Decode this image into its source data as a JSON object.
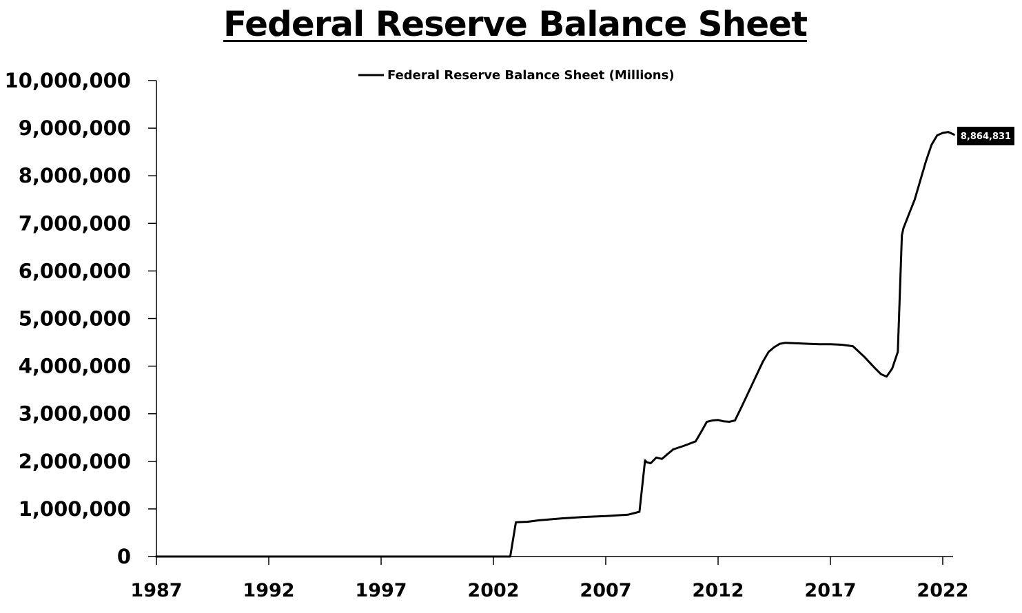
{
  "chart_data": {
    "type": "line",
    "title": "Federal Reserve Balance Sheet",
    "xlabel": "",
    "ylabel": "",
    "xlim": [
      1987,
      2022.5
    ],
    "ylim": [
      0,
      10000000
    ],
    "y_ticks": [
      0,
      1000000,
      2000000,
      3000000,
      4000000,
      5000000,
      6000000,
      7000000,
      8000000,
      9000000,
      10000000
    ],
    "y_tick_labels": [
      "0",
      "1,000,000",
      "2,000,000",
      "3,000,000",
      "4,000,000",
      "5,000,000",
      "6,000,000",
      "7,000,000",
      "8,000,000",
      "9,000,000",
      "10,000,000"
    ],
    "x_ticks": [
      1987,
      1992,
      1997,
      2002,
      2007,
      2012,
      2017,
      2022
    ],
    "x_tick_labels": [
      "1987",
      "1992",
      "1997",
      "2002",
      "2007",
      "2012",
      "2017",
      "2022"
    ],
    "grid": false,
    "legend_position": "top-center",
    "line_color": "#000000",
    "series": [
      {
        "name": "Federal Reserve Balance Sheet (Millions)",
        "x": [
          1987.0,
          2002.75,
          2003.0,
          2003.5,
          2004.0,
          2005.0,
          2006.0,
          2007.0,
          2008.0,
          2008.5,
          2008.75,
          2008.83,
          2009.0,
          2009.25,
          2009.5,
          2009.75,
          2010.0,
          2010.5,
          2011.0,
          2011.25,
          2011.5,
          2011.75,
          2012.0,
          2012.25,
          2012.5,
          2012.75,
          2013.0,
          2013.25,
          2013.5,
          2013.75,
          2014.0,
          2014.25,
          2014.5,
          2014.75,
          2015.0,
          2016.0,
          2016.5,
          2017.0,
          2017.5,
          2018.0,
          2018.5,
          2019.0,
          2019.25,
          2019.5,
          2019.75,
          2020.0,
          2020.18,
          2020.25,
          2020.5,
          2020.75,
          2021.0,
          2021.25,
          2021.5,
          2021.75,
          2022.0,
          2022.25,
          2022.5
        ],
        "values": [
          0,
          0,
          720000,
          730000,
          760000,
          800000,
          830000,
          850000,
          880000,
          940000,
          2020000,
          1980000,
          1960000,
          2080000,
          2050000,
          2150000,
          2250000,
          2330000,
          2420000,
          2620000,
          2830000,
          2860000,
          2870000,
          2840000,
          2830000,
          2860000,
          3100000,
          3350000,
          3600000,
          3850000,
          4100000,
          4300000,
          4400000,
          4470000,
          4490000,
          4470000,
          4460000,
          4460000,
          4450000,
          4420000,
          4200000,
          3950000,
          3830000,
          3780000,
          3950000,
          4300000,
          6750000,
          6900000,
          7200000,
          7500000,
          7900000,
          8300000,
          8650000,
          8850000,
          8900000,
          8920000,
          8864831
        ]
      }
    ],
    "end_label": "8,864,831"
  }
}
